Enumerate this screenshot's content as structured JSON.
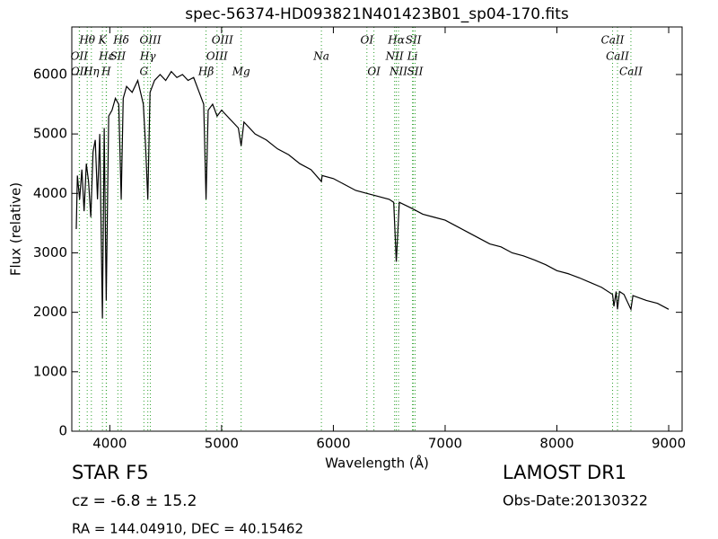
{
  "chart_data": {
    "type": "line",
    "title": "spec-56374-HD093821N401423B01_sp04-170.fits",
    "x_label": "Wavelength (Å)",
    "y_label": "Flux (relative)",
    "xlim": [
      3660,
      9120
    ],
    "ylim": [
      0,
      6800
    ],
    "xticks": [
      4000,
      5000,
      6000,
      7000,
      8000,
      9000
    ],
    "yticks": [
      0,
      1000,
      2000,
      3000,
      4000,
      5000,
      6000
    ],
    "x": [
      3700,
      3710,
      3730,
      3750,
      3770,
      3790,
      3810,
      3830,
      3850,
      3870,
      3890,
      3910,
      3934,
      3950,
      3968,
      3990,
      4020,
      4050,
      4080,
      4102,
      4120,
      4150,
      4200,
      4250,
      4300,
      4320,
      4340,
      4360,
      4400,
      4450,
      4500,
      4550,
      4600,
      4650,
      4700,
      4750,
      4800,
      4840,
      4861,
      4880,
      4920,
      4960,
      5000,
      5050,
      5100,
      5150,
      5175,
      5200,
      5300,
      5400,
      5500,
      5600,
      5700,
      5800,
      5893,
      5900,
      6000,
      6100,
      6200,
      6300,
      6400,
      6500,
      6540,
      6563,
      6590,
      6700,
      6800,
      6900,
      7000,
      7100,
      7200,
      7300,
      7400,
      7500,
      7600,
      7700,
      7800,
      7900,
      8000,
      8100,
      8200,
      8300,
      8400,
      8498,
      8510,
      8530,
      8542,
      8560,
      8600,
      8662,
      8680,
      8800,
      8900,
      9000
    ],
    "series": [
      {
        "color": "#000000",
        "values": [
          3400,
          4300,
          3900,
          4400,
          3700,
          4500,
          4200,
          3600,
          4700,
          4900,
          3900,
          5000,
          1900,
          5100,
          2200,
          5300,
          5400,
          5600,
          5500,
          3900,
          5600,
          5800,
          5700,
          5900,
          5500,
          4800,
          3900,
          5700,
          5900,
          6000,
          5900,
          6050,
          5950,
          6000,
          5900,
          5950,
          5700,
          5500,
          3900,
          5400,
          5500,
          5300,
          5400,
          5300,
          5200,
          5100,
          4800,
          5200,
          5000,
          4900,
          4750,
          4650,
          4500,
          4400,
          4200,
          4300,
          4250,
          4150,
          4050,
          4000,
          3950,
          3900,
          3850,
          2850,
          3850,
          3750,
          3650,
          3600,
          3550,
          3450,
          3350,
          3250,
          3150,
          3100,
          3000,
          2950,
          2880,
          2800,
          2700,
          2650,
          2580,
          2500,
          2420,
          2300,
          2100,
          2350,
          2050,
          2350,
          2300,
          2050,
          2280,
          2200,
          2150,
          2050
        ]
      }
    ],
    "line_color": "#2ca02c",
    "line_labels": [
      [
        {
          "label": "Hθ",
          "x": 3798
        },
        {
          "label": "K",
          "x": 3934
        },
        {
          "label": "Hδ",
          "x": 4102
        },
        {
          "label": "OIII",
          "x": 4363
        },
        {
          "label": "OIII",
          "x": 5007
        },
        {
          "label": "OI",
          "x": 6300
        },
        {
          "label": "Hα",
          "x": 6563
        },
        {
          "label": "SII",
          "x": 6716
        },
        {
          "label": "CaII",
          "x": 8498
        }
      ],
      [
        {
          "label": "OII",
          "x": 3727
        },
        {
          "label": "Hε",
          "x": 3970
        },
        {
          "label": "SII",
          "x": 4072
        },
        {
          "label": "Hγ",
          "x": 4340
        },
        {
          "label": "OIII",
          "x": 4959
        },
        {
          "label": "Na",
          "x": 5893
        },
        {
          "label": "NII",
          "x": 6548
        },
        {
          "label": "Li",
          "x": 6708
        },
        {
          "label": "CaII",
          "x": 8542
        }
      ],
      [
        {
          "label": "OII",
          "x": 3729
        },
        {
          "label": "Hη",
          "x": 3835
        },
        {
          "label": "H",
          "x": 3968
        },
        {
          "label": "G",
          "x": 4305
        },
        {
          "label": "Hβ",
          "x": 4861
        },
        {
          "label": "Mg",
          "x": 5175
        },
        {
          "label": "OI",
          "x": 6363
        },
        {
          "label": "NII",
          "x": 6583
        },
        {
          "label": "SII",
          "x": 6731
        },
        {
          "label": "CaII",
          "x": 8662
        }
      ]
    ],
    "footer": {
      "object": "STAR   F5",
      "cz": "cz = -6.8 ± 15.2",
      "coords": "RA = 144.04910, DEC = 40.15462",
      "survey": "LAMOST DR1",
      "date": "Obs-Date:20130322"
    }
  }
}
